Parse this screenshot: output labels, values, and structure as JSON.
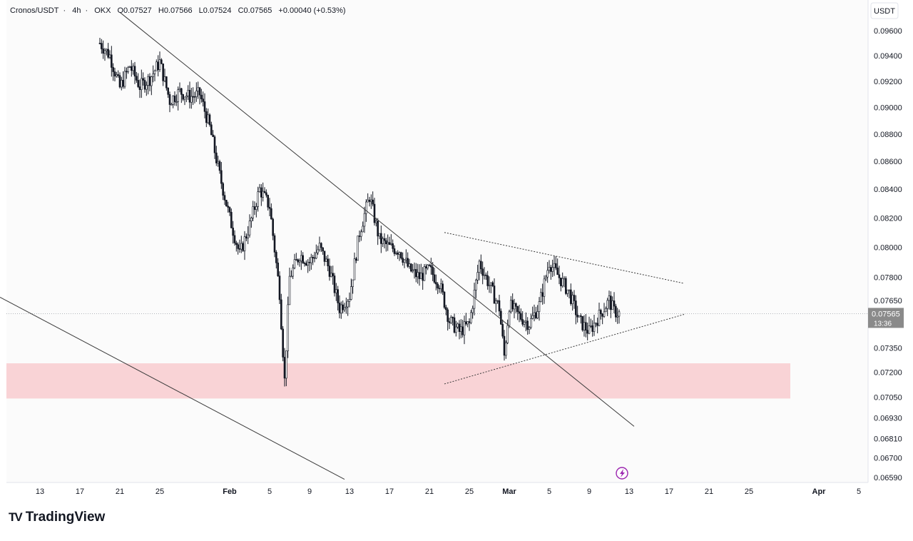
{
  "header": {
    "symbol": "Cronos/USDT",
    "interval": "4h",
    "exchange": "OKX",
    "open": "O0.07527",
    "high": "H0.07566",
    "low": "L0.07524",
    "close": "C0.07565",
    "change": "+0.00040 (+0.53%)"
  },
  "currency_button": "USDT",
  "brand": {
    "logo": "TV",
    "name": "TradingView"
  },
  "price_badge": {
    "price": "0.07565",
    "countdown": "13:36"
  },
  "chart_data": {
    "type": "candlestick",
    "y_scale": "log",
    "ylim": [
      0.0657,
      0.0975
    ],
    "y_ticks": [
      "0.09600",
      "0.09400",
      "0.09200",
      "0.09000",
      "0.08800",
      "0.08600",
      "0.08400",
      "0.08200",
      "0.08000",
      "0.07800",
      "0.07650",
      "0.07350",
      "0.07200",
      "0.07050",
      "0.06930",
      "0.06810",
      "0.06700",
      "0.06590"
    ],
    "x_ticks": [
      "13",
      "17",
      "21",
      "25",
      "Feb",
      "5",
      "9",
      "13",
      "17",
      "21",
      "25",
      "Mar",
      "5",
      "9",
      "13",
      "17",
      "21",
      "25",
      "Apr",
      "5"
    ],
    "x_tick_dates": [
      "2025-01-13",
      "2025-01-17",
      "2025-01-21",
      "2025-01-25",
      "2025-02-01",
      "2025-02-05",
      "2025-02-09",
      "2025-02-13",
      "2025-02-17",
      "2025-02-21",
      "2025-02-25",
      "2025-03-01",
      "2025-03-05",
      "2025-03-09",
      "2025-03-13",
      "2025-03-17",
      "2025-03-21",
      "2025-03-25",
      "2025-04-01",
      "2025-04-05"
    ],
    "price_path": [
      [
        "2025-01-19T00:00",
        0.095
      ],
      [
        "2025-01-20T00:00",
        0.094
      ],
      [
        "2025-01-21T00:00",
        0.0915
      ],
      [
        "2025-01-22T00:00",
        0.0932
      ],
      [
        "2025-01-23T00:00",
        0.0916
      ],
      [
        "2025-01-24T00:00",
        0.0922
      ],
      [
        "2025-01-25T00:00",
        0.0935
      ],
      [
        "2025-01-26T00:00",
        0.0905
      ],
      [
        "2025-01-27T00:00",
        0.0912
      ],
      [
        "2025-01-28T00:00",
        0.0908
      ],
      [
        "2025-01-29T00:00",
        0.091
      ],
      [
        "2025-01-30T00:00",
        0.0885
      ],
      [
        "2025-01-31T00:00",
        0.085
      ],
      [
        "2025-02-01T00:00",
        0.082
      ],
      [
        "2025-02-02T00:00",
        0.0795
      ],
      [
        "2025-02-03T00:00",
        0.0815
      ],
      [
        "2025-02-04T00:00",
        0.084
      ],
      [
        "2025-02-05T00:00",
        0.0828
      ],
      [
        "2025-02-06T00:00",
        0.077
      ],
      [
        "2025-02-06T12:00",
        0.0715
      ],
      [
        "2025-02-07T00:00",
        0.078
      ],
      [
        "2025-02-08T00:00",
        0.0795
      ],
      [
        "2025-02-09T00:00",
        0.079
      ],
      [
        "2025-02-10T00:00",
        0.08
      ],
      [
        "2025-02-11T00:00",
        0.0785
      ],
      [
        "2025-02-12T00:00",
        0.076
      ],
      [
        "2025-02-13T00:00",
        0.0768
      ],
      [
        "2025-02-14T00:00",
        0.081
      ],
      [
        "2025-02-15T00:00",
        0.0835
      ],
      [
        "2025-02-16T00:00",
        0.0805
      ],
      [
        "2025-02-17T00:00",
        0.08
      ],
      [
        "2025-02-18T00:00",
        0.0798
      ],
      [
        "2025-02-19T00:00",
        0.0785
      ],
      [
        "2025-02-20T00:00",
        0.078
      ],
      [
        "2025-02-21T00:00",
        0.0785
      ],
      [
        "2025-02-22T00:00",
        0.0776
      ],
      [
        "2025-02-23T00:00",
        0.0752
      ],
      [
        "2025-02-24T00:00",
        0.0745
      ],
      [
        "2025-02-25T00:00",
        0.075
      ],
      [
        "2025-02-26T00:00",
        0.079
      ],
      [
        "2025-02-27T00:00",
        0.0775
      ],
      [
        "2025-02-28T00:00",
        0.076
      ],
      [
        "2025-02-28T12:00",
        0.073
      ],
      [
        "2025-03-01T00:00",
        0.0762
      ],
      [
        "2025-03-02T00:00",
        0.0755
      ],
      [
        "2025-03-03T00:00",
        0.075
      ],
      [
        "2025-03-04T00:00",
        0.0762
      ],
      [
        "2025-03-05T00:00",
        0.079
      ],
      [
        "2025-03-06T00:00",
        0.078
      ],
      [
        "2025-03-07T00:00",
        0.077
      ],
      [
        "2025-03-08T00:00",
        0.0752
      ],
      [
        "2025-03-09T00:00",
        0.0745
      ],
      [
        "2025-03-10T00:00",
        0.0755
      ],
      [
        "2025-03-11T00:00",
        0.0765
      ],
      [
        "2025-03-11T12:00",
        0.0758
      ],
      [
        "2025-03-12T00:00",
        0.07565
      ]
    ],
    "drawings": {
      "descending_trendline_upper": [
        [
          "2025-01-21T00:00",
          0.0975
        ],
        [
          "2025-03-13T12:00",
          0.0688
        ]
      ],
      "descending_trendline_lower": [
        [
          "2025-01-09T00:00",
          0.0767
        ],
        [
          "2025-02-12T12:00",
          0.0658
        ]
      ],
      "triangle_upper": [
        [
          "2025-02-22T12:00",
          0.081
        ],
        [
          "2025-03-18T12:00",
          0.0776
        ]
      ],
      "triangle_lower": [
        [
          "2025-02-22T12:00",
          0.0713
        ],
        [
          "2025-03-18T12:00",
          0.0756
        ]
      ],
      "support_zone": [
        0.07043,
        0.07255
      ],
      "current_price_line": 0.07565
    }
  },
  "colors": {
    "background": "#ffffff",
    "candles": "#131722",
    "trendline": "#3a3a3a",
    "support_zone": "#f9d3d6",
    "axis_text": "#131722",
    "price_badge": "#8a8a8a",
    "alert_icon": "#9c27b0"
  }
}
